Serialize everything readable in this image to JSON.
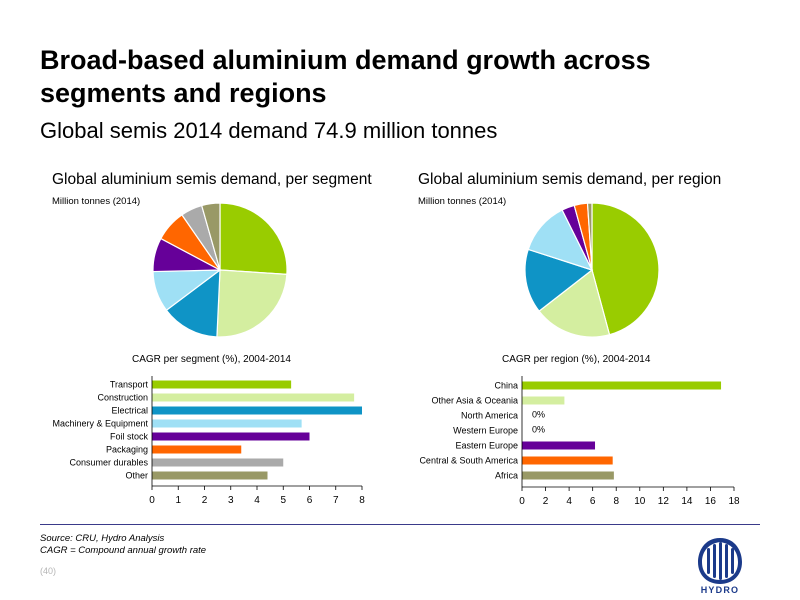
{
  "title": "Broad-based aluminium demand growth across segments and regions",
  "subtitle": "Global semis 2014 demand 74.9 million tonnes",
  "segment": {
    "title": "Global aluminium semis demand, per segment",
    "unit": "Million tonnes (2014)"
  },
  "region": {
    "title": "Global aluminium semis demand, per region",
    "unit": "Million tonnes (2014)"
  },
  "colors": {
    "transport": "#99cc00",
    "construction": "#d4eea0",
    "electrical": "#0f94c6",
    "machinery": "#9fe0f5",
    "foil": "#660099",
    "packaging": "#ff6600",
    "consumer": "#aaaaaa",
    "other": "#999966"
  },
  "chart_data": [
    {
      "type": "pie",
      "title": "Global aluminium semis demand, per segment",
      "unit": "Million tonnes (2014)",
      "labels": [
        "Transport",
        "Construction",
        "Electrical",
        "Machinery & Equipment",
        "Foil stock",
        "Packaging",
        "Consumer durables",
        "Other"
      ],
      "values": [
        19.5,
        18.5,
        10.5,
        7.4,
        6.1,
        5.7,
        3.9,
        3.3
      ],
      "colors": [
        "#99cc00",
        "#d4eea0",
        "#0f94c6",
        "#9fe0f5",
        "#660099",
        "#ff6600",
        "#aaaaaa",
        "#999966"
      ]
    },
    {
      "type": "pie",
      "title": "Global aluminium semis demand, per region",
      "unit": "Million tonnes (2014)",
      "labels": [
        "China",
        "Other Asia & Oceania",
        "North America",
        "Western Europe",
        "Eastern Europe",
        "Central & South America",
        "Africa"
      ],
      "values": [
        34.3,
        14.0,
        11.6,
        9.5,
        2.3,
        2.4,
        0.8
      ],
      "colors": [
        "#99cc00",
        "#d4eea0",
        "#0f94c6",
        "#9fe0f5",
        "#660099",
        "#ff6600",
        "#999966"
      ]
    },
    {
      "type": "bar",
      "orientation": "horizontal",
      "title": "CAGR per segment (%),  2004-2014",
      "categories": [
        "Transport",
        "Construction",
        "Electrical",
        "Machinery & Equipment",
        "Foil stock",
        "Packaging",
        "Consumer durables",
        "Other"
      ],
      "values": [
        5.3,
        7.7,
        8.0,
        5.7,
        6.0,
        3.4,
        5.0,
        4.4
      ],
      "colors": [
        "#99cc00",
        "#d4eea0",
        "#0f94c6",
        "#9fe0f5",
        "#660099",
        "#ff6600",
        "#aaaaaa",
        "#999966"
      ],
      "xlim": [
        0,
        8
      ],
      "xticks": [
        "0",
        "1",
        "2",
        "3",
        "4",
        "5",
        "6",
        "7",
        "8"
      ],
      "grid": false
    },
    {
      "type": "bar",
      "orientation": "horizontal",
      "title": "CAGR per region (%),  2004-2014",
      "categories": [
        "China",
        "Other Asia & Oceania",
        "North America",
        "Western Europe",
        "Eastern Europe",
        "Central & South America",
        "Africa"
      ],
      "values": [
        16.9,
        3.6,
        0,
        0,
        6.2,
        7.7,
        7.8
      ],
      "data_labels": [
        "",
        "",
        "0%",
        "0%",
        "",
        "",
        ""
      ],
      "colors": [
        "#99cc00",
        "#d4eea0",
        "#0f94c6",
        "#9fe0f5",
        "#660099",
        "#ff6600",
        "#999966"
      ],
      "xlim": [
        0,
        18
      ],
      "xticks": [
        "0",
        "2",
        "4",
        "6",
        "8",
        "10",
        "12",
        "14",
        "16",
        "18"
      ],
      "grid": false
    }
  ],
  "footer": {
    "source": "Source: CRU, Hydro Analysis",
    "note": "CAGR = Compound annual growth rate",
    "page": "(40)",
    "logo_text": "HYDRO"
  }
}
